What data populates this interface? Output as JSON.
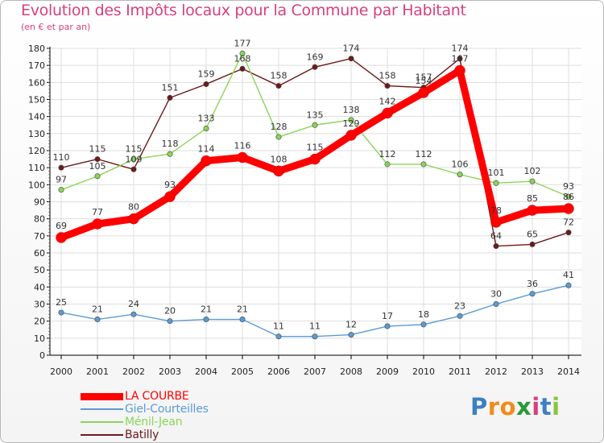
{
  "title": "Evolution des Impôts locaux pour la Commune par Habitant",
  "subtitle": "(en € et par an)",
  "logo": {
    "letters": [
      "P",
      "r",
      "o",
      "x",
      "i",
      "t",
      "i"
    ]
  },
  "colors": {
    "title": "#d6407c",
    "logo": [
      "#3d7fc4",
      "#f08c1c",
      "#f08c1c",
      "#2a9a3a",
      "#d6407c",
      "#3d7fc4",
      "#8bc43d"
    ]
  },
  "chart_data": {
    "type": "line",
    "title": "Evolution des Impôts locaux pour la Commune par Habitant",
    "subtitle": "(en € et par an)",
    "x": [
      "2000",
      "2001",
      "2002",
      "2003",
      "2004",
      "2005",
      "2006",
      "2007",
      "2008",
      "2009",
      "2010",
      "2011",
      "2012",
      "2013",
      "2014"
    ],
    "yticks": [
      "0",
      "10",
      "20",
      "30",
      "40",
      "50",
      "60",
      "70",
      "80",
      "90",
      "100",
      "110",
      "120",
      "130",
      "140",
      "150",
      "160",
      "170",
      "180"
    ],
    "ylim": [
      0,
      180
    ],
    "grid": true,
    "legend": "bottom-left",
    "series": [
      {
        "name": "Batilly",
        "color": "#6e1a1a",
        "values": [
          110,
          115,
          109,
          151,
          159,
          168,
          158,
          169,
          174,
          158,
          157,
          174,
          64,
          65,
          72
        ]
      },
      {
        "name": "Ménil-Jean",
        "color": "#8ad45a",
        "values": [
          97,
          105,
          115,
          118,
          133,
          177,
          128,
          135,
          138,
          112,
          112,
          106,
          101,
          102,
          93
        ]
      },
      {
        "name": "Giel-Courteilles",
        "color": "#5b9bd5",
        "values": [
          25,
          21,
          24,
          20,
          21,
          21,
          11,
          11,
          12,
          17,
          18,
          23,
          30,
          36,
          41
        ]
      },
      {
        "name": "LA COURBE",
        "color": "#ff0000",
        "values": [
          69,
          77,
          80,
          93,
          114,
          116,
          108,
          115,
          129,
          142,
          154,
          167,
          78,
          85,
          86
        ]
      }
    ],
    "legend_order": [
      "LA COURBE",
      "Giel-Courteilles",
      "Ménil-Jean",
      "Batilly"
    ]
  }
}
